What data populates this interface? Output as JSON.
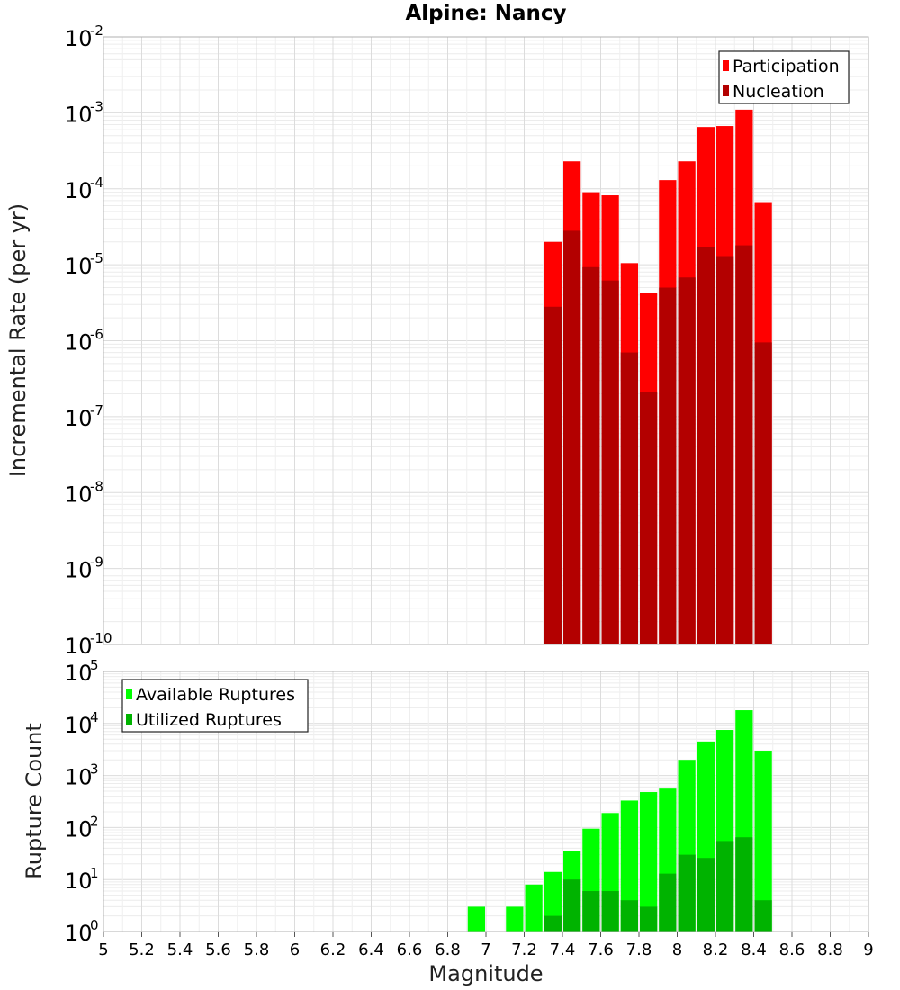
{
  "chart_data": [
    {
      "type": "bar",
      "title": "Alpine: Nancy",
      "xlabel": "",
      "ylabel": "Incremental Rate (per yr)",
      "yscale": "log",
      "ylim": [
        1e-10,
        0.01
      ],
      "xlim": [
        5,
        9
      ],
      "bin_width": 0.1,
      "grid": true,
      "legend_placement": "top-right",
      "colors": {
        "Participation": "#ff0000",
        "Nucleation": "#b30000"
      },
      "x": [
        7.35,
        7.45,
        7.55,
        7.65,
        7.75,
        7.85,
        7.95,
        8.05,
        8.15,
        8.25,
        8.35,
        8.45
      ],
      "series": [
        {
          "name": "Participation",
          "values": [
            2e-05,
            0.00023,
            9e-05,
            8.2e-05,
            1.05e-05,
            4.3e-06,
            0.00013,
            0.00023,
            0.00065,
            0.00067,
            0.0011,
            6.5e-05
          ]
        },
        {
          "name": "Nucleation",
          "values": [
            2.8e-06,
            2.8e-05,
            9.3e-06,
            6.2e-06,
            7e-07,
            2.1e-07,
            5e-06,
            6.8e-06,
            1.7e-05,
            1.3e-05,
            1.8e-05,
            9.5e-07
          ]
        }
      ]
    },
    {
      "type": "bar",
      "title": "",
      "xlabel": "Magnitude",
      "ylabel": "Rupture Count",
      "yscale": "log",
      "ylim": [
        1,
        100000.0
      ],
      "xlim": [
        5,
        9
      ],
      "bin_width": 0.1,
      "grid": true,
      "legend_placement": "top-left",
      "colors": {
        "Available Ruptures": "#00ff00",
        "Utilized Ruptures": "#00b300"
      },
      "x_ticks": [
        "5",
        "5.2",
        "5.4",
        "5.6",
        "5.8",
        "6",
        "6.2",
        "6.4",
        "6.6",
        "6.8",
        "7",
        "7.2",
        "7.4",
        "7.6",
        "7.8",
        "8",
        "8.2",
        "8.4",
        "8.6",
        "8.8",
        "9"
      ],
      "x": [
        6.55,
        6.95,
        7.05,
        7.15,
        7.25,
        7.35,
        7.45,
        7.55,
        7.65,
        7.75,
        7.85,
        7.95,
        8.05,
        8.15,
        8.25,
        8.35,
        8.45
      ],
      "series": [
        {
          "name": "Available Ruptures",
          "values": [
            1,
            3,
            1,
            3,
            8,
            14,
            35,
            95,
            190,
            330,
            480,
            560,
            2000,
            4500,
            7500,
            18000,
            3000
          ]
        },
        {
          "name": "Utilized Ruptures",
          "values": [
            0,
            0,
            0,
            0,
            0,
            2,
            10,
            6,
            6,
            4,
            3,
            13,
            30,
            26,
            55,
            65,
            4
          ]
        }
      ]
    }
  ]
}
